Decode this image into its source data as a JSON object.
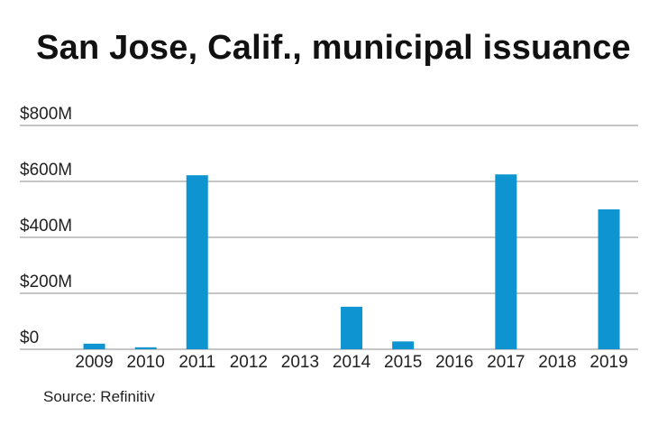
{
  "title": "San Jose, Calif., municipal issuance",
  "source": "Source: Refinitiv",
  "colors": {
    "bar": "#0f94d2",
    "grid": "#8c8c8c",
    "text": "#222222"
  },
  "chart_data": {
    "type": "bar",
    "title": "San Jose, Calif., municipal issuance",
    "xlabel": "",
    "ylabel": "",
    "categories": [
      "2009",
      "2010",
      "2011",
      "2012",
      "2013",
      "2014",
      "2015",
      "2016",
      "2017",
      "2018",
      "2019"
    ],
    "values": [
      20,
      7,
      622,
      0,
      0,
      152,
      28,
      0,
      625,
      0,
      500
    ],
    "unit": "$M",
    "ylim": [
      0,
      800
    ],
    "yticks": [
      0,
      200,
      400,
      600,
      800
    ],
    "ytick_labels": [
      "$0",
      "$200M",
      "$400M",
      "$600M",
      "$800M"
    ],
    "grid": true,
    "legend": "none"
  }
}
